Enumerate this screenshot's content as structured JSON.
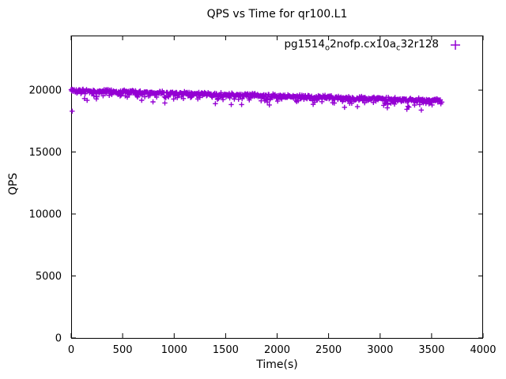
{
  "title": "QPS vs Time for qr100.L1",
  "axes": {
    "xlabel": "Time(s)",
    "ylabel": "QPS",
    "xticks": [
      0,
      500,
      1000,
      1500,
      2000,
      2500,
      3000,
      3500,
      4000
    ],
    "yticks": [
      0,
      5000,
      10000,
      15000,
      20000
    ],
    "xlim": [
      0,
      4000
    ],
    "ylim": [
      0,
      24400
    ]
  },
  "legend": {
    "label_plain": "pg1514_o2nofp.cx10a_c32r128",
    "label_parts": [
      {
        "text": "pg1514",
        "sub": false
      },
      {
        "text": "o",
        "sub": true
      },
      {
        "text": "2nofp.cx10a",
        "sub": false
      },
      {
        "text": "c",
        "sub": true
      },
      {
        "text": "32r128",
        "sub": false
      }
    ],
    "marker": "plus",
    "position": "top-right-inside"
  },
  "colors": {
    "series": "#9400D3",
    "axis": "#000000",
    "text": "#000000",
    "background": "#ffffff"
  },
  "chart_data": {
    "type": "scatter",
    "title": "QPS vs Time for qr100.L1",
    "xlabel": "Time(s)",
    "ylabel": "QPS",
    "xlim": [
      0,
      4000
    ],
    "ylim": [
      0,
      24400
    ],
    "xticks": [
      0,
      500,
      1000,
      1500,
      2000,
      2500,
      3000,
      3500,
      4000
    ],
    "yticks": [
      0,
      5000,
      10000,
      15000,
      20000
    ],
    "grid": false,
    "legend_position": "top-right-inside",
    "series": [
      {
        "name": "pg1514_o2nofp.cx10a_c32r128",
        "marker": "plus",
        "color": "#9400D3",
        "sampling": {
          "t_start_s": 0,
          "t_end_s": 3600,
          "step_s": 5
        },
        "trend": {
          "qps_at_start": 19980,
          "qps_at_end": 19150,
          "shape": "linear-decline"
        },
        "noise": {
          "typical_spread_qps": 170,
          "low_tail_min_offset_qps": -430,
          "rare_dip_min_offset_qps": -820,
          "rare_dip_probability": 0.025,
          "seed": 42
        },
        "explicit_outliers": [
          [
            10,
            18300
          ]
        ]
      }
    ]
  }
}
